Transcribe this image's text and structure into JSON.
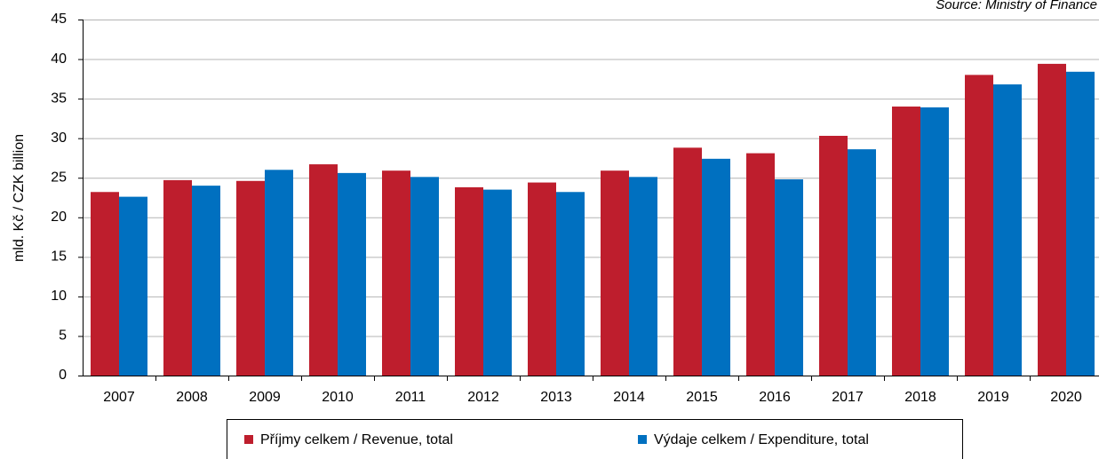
{
  "chart_data": {
    "type": "bar",
    "source": "Source: Ministry of Finance",
    "y_label": "mld. Kč / CZK billion",
    "categories": [
      "2007",
      "2008",
      "2009",
      "2010",
      "2011",
      "2012",
      "2013",
      "2014",
      "2015",
      "2016",
      "2017",
      "2018",
      "2019",
      "2020"
    ],
    "series": [
      {
        "name": "Příjmy celkem / Revenue, total",
        "color": "#be1e2d",
        "values": [
          23.2,
          24.7,
          24.6,
          26.7,
          25.9,
          23.8,
          24.4,
          25.9,
          28.8,
          28.1,
          30.3,
          34.0,
          38.0,
          39.4
        ]
      },
      {
        "name": "Výdaje celkem / Expenditure, total",
        "color": "#0070c0",
        "values": [
          22.6,
          24.0,
          26.0,
          25.6,
          25.1,
          23.5,
          23.2,
          25.1,
          27.4,
          24.8,
          28.6,
          33.9,
          36.8,
          38.4
        ]
      }
    ],
    "ylim": [
      0,
      45
    ],
    "yticks": [
      0,
      5,
      10,
      15,
      20,
      25,
      30,
      35,
      40,
      45
    ],
    "grid": true
  }
}
